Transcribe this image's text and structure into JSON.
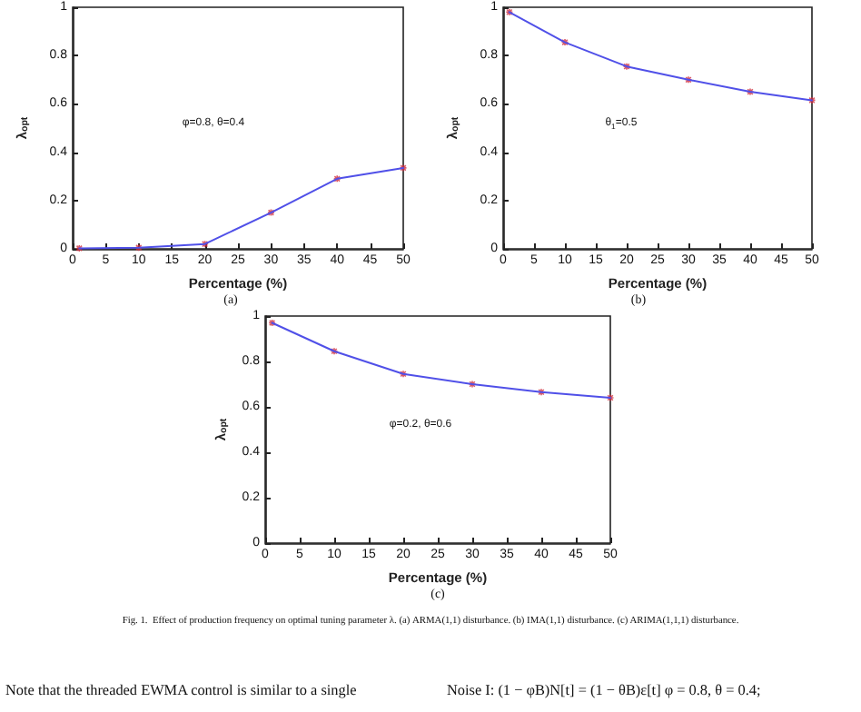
{
  "chart_data": [
    {
      "type": "line",
      "xlabel": "Percentage (%)",
      "ylabel": "λ$_{opt}$",
      "xlim": [
        0,
        50
      ],
      "xticks": [
        0,
        5,
        10,
        15,
        20,
        25,
        30,
        35,
        40,
        45,
        50
      ],
      "ylim": [
        0,
        1
      ],
      "yticks": [
        0,
        0.2,
        0.4,
        0.6,
        0.8,
        1
      ],
      "grid": false,
      "x": [
        1,
        10,
        20,
        30,
        40,
        50
      ],
      "series": [
        {
          "color": "#5050e8",
          "marker": "none",
          "values": [
            0.002,
            0.005,
            0.02,
            0.15,
            0.29,
            0.335
          ]
        },
        {
          "type": "scatter",
          "color": "#d03040",
          "marker": "cross",
          "values": [
            0.002,
            0.005,
            0.02,
            0.15,
            0.29,
            0.335
          ]
        }
      ],
      "annotations": [
        "φ=0.8, θ=0.4",
        "(a)"
      ]
    },
    {
      "type": "line",
      "xlabel": "Percentage (%)",
      "ylabel": "λ$_{opt}$",
      "xlim": [
        0,
        50
      ],
      "xticks": [
        0,
        5,
        10,
        15,
        20,
        25,
        30,
        35,
        40,
        45,
        50
      ],
      "ylim": [
        0,
        1
      ],
      "yticks": [
        0,
        0.2,
        0.4,
        0.6,
        0.8,
        1
      ],
      "grid": false,
      "x": [
        1,
        10,
        20,
        30,
        40,
        50
      ],
      "series": [
        {
          "color": "#5050e8",
          "marker": "none",
          "values": [
            0.98,
            0.855,
            0.755,
            0.7,
            0.65,
            0.615
          ]
        },
        {
          "type": "scatter",
          "color": "#d03040",
          "marker": "cross",
          "values": [
            0.98,
            0.855,
            0.755,
            0.7,
            0.65,
            0.615
          ]
        }
      ],
      "annotations": [
        "θ$_{1}$=0.5",
        "(b)"
      ]
    },
    {
      "type": "line",
      "xlabel": "Percentage (%)",
      "ylabel": "λ$_{opt}$",
      "xlim": [
        0,
        50
      ],
      "xticks": [
        0,
        5,
        10,
        15,
        20,
        25,
        30,
        35,
        40,
        45,
        50
      ],
      "ylim": [
        0,
        1
      ],
      "yticks": [
        0,
        0.2,
        0.4,
        0.6,
        0.8,
        1
      ],
      "grid": false,
      "x": [
        1,
        10,
        20,
        30,
        40,
        50
      ],
      "series": [
        {
          "color": "#5050e8",
          "marker": "none",
          "values": [
            0.97,
            0.845,
            0.745,
            0.7,
            0.665,
            0.64
          ]
        },
        {
          "type": "scatter",
          "color": "#d03040",
          "marker": "cross",
          "values": [
            0.97,
            0.845,
            0.745,
            0.7,
            0.665,
            0.64
          ]
        }
      ],
      "annotations": [
        "φ=0.2, θ=0.6",
        "(c)",
        "Fig. 1.  Effect of production frequency on optimal tuning parameter λ. (a) ARMA(1,1) disturbance. (b) IMA(1,1) disturbance. (c) ARIMA(1,1,1) disturbance.",
        "Note that the threaded EWMA control is similar to a single",
        "Noise I: (1 − φB)N[t] = (1 − θB)ε[t] φ = 0.8, θ = 0.4;"
      ]
    }
  ]
}
